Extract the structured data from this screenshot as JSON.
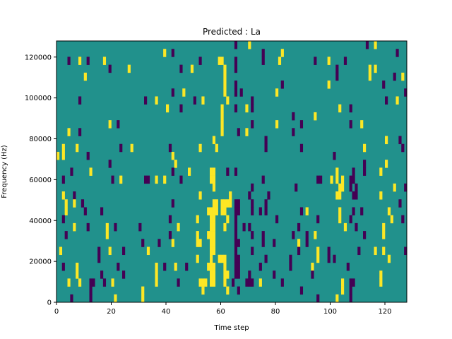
{
  "chart_data": {
    "type": "heatmap",
    "title": "Predicted : La",
    "xlabel": "Time step",
    "ylabel": "Frequency (Hz)",
    "xlim": [
      0,
      128
    ],
    "ylim": [
      0,
      127875
    ],
    "n_time_steps": 128,
    "n_freq_bins": 33,
    "xticks": [
      "0",
      "20",
      "40",
      "60",
      "80",
      "100",
      "120"
    ],
    "xtick_values": [
      0,
      20,
      40,
      60,
      80,
      100,
      120
    ],
    "yticks": [
      "0",
      "20000",
      "40000",
      "60000",
      "80000",
      "100000",
      "120000"
    ],
    "ytick_values": [
      0,
      20000,
      40000,
      60000,
      80000,
      100000,
      120000
    ],
    "value_colors": {
      "-1": "#440154",
      "0": "#21918c",
      "1": "#fde725"
    },
    "background_value": 0,
    "rows": [
      {
        "bin": 32,
        "yellow": [
          70,
          116
        ],
        "purple": [
          65,
          113
        ]
      },
      {
        "bin": 31,
        "yellow": [
          39,
          82
        ],
        "purple": [
          42,
          75,
          124
        ]
      },
      {
        "bin": 30,
        "yellow": [
          8,
          17,
          59,
          60,
          81,
          99
        ],
        "purple": [
          4,
          11,
          52,
          65,
          75,
          94,
          105
        ]
      },
      {
        "bin": 29,
        "yellow": [
          26,
          49,
          61,
          114,
          116
        ],
        "purple": [
          19,
          45,
          65,
          102
        ]
      },
      {
        "bin": 28,
        "yellow": [
          10,
          61,
          114,
          126
        ],
        "purple": [
          102,
          123
        ]
      },
      {
        "bin": 27,
        "yellow": [
          61,
          99
        ],
        "purple": [
          65,
          82,
          119
        ]
      },
      {
        "bin": 26,
        "yellow": [
          46,
          61,
          80
        ],
        "purple": [
          42,
          65,
          67,
          127
        ]
      },
      {
        "bin": 25,
        "yellow": [
          36,
          53,
          62,
          124
        ],
        "purple": [
          8,
          32,
          50,
          71,
          120
        ]
      },
      {
        "bin": 24,
        "yellow": [
          40,
          60,
          69,
          103
        ],
        "purple": [
          45,
          65,
          71,
          107
        ]
      },
      {
        "bin": 23,
        "yellow": [
          60,
          94
        ],
        "purple": [
          86
        ]
      },
      {
        "bin": 22,
        "yellow": [
          19,
          60,
          80,
          111
        ],
        "purple": [
          22,
          71,
          89,
          107
        ]
      },
      {
        "bin": 21,
        "yellow": [
          4,
          60,
          69
        ],
        "purple": [
          8,
          66,
          86
        ]
      },
      {
        "bin": 20,
        "yellow": [
          57,
          120
        ],
        "purple": [
          76,
          125
        ]
      },
      {
        "bin": 19,
        "yellow": [
          2,
          7,
          27,
          52,
          58,
          112
        ],
        "purple": [
          23,
          41,
          76,
          89,
          126
        ]
      },
      {
        "bin": 18,
        "yellow": [
          0,
          2,
          42
        ],
        "purple": [
          11,
          101
        ]
      },
      {
        "bin": 17,
        "yellow": [
          43,
          120
        ],
        "purple": [
          19,
          112
        ]
      },
      {
        "bin": 16,
        "yellow": [
          12,
          48,
          56,
          57,
          102,
          118
        ],
        "purple": [
          5,
          42,
          62,
          65,
          108,
          112
        ]
      },
      {
        "bin": 15,
        "yellow": [
          23,
          36,
          39,
          56,
          57,
          100,
          102,
          104
        ],
        "purple": [
          2,
          20,
          32,
          33,
          45,
          75,
          95,
          96,
          107,
          108
        ]
      },
      {
        "bin": 14,
        "yellow": [
          57,
          103,
          104,
          123
        ],
        "purple": [
          71,
          87,
          107,
          109,
          127
        ]
      },
      {
        "bin": 13,
        "yellow": [
          2,
          52,
          63,
          102,
          103,
          118
        ],
        "purple": [
          6,
          70,
          77,
          108,
          109
        ]
      },
      {
        "bin": 12,
        "yellow": [
          3,
          6,
          57,
          58,
          60,
          61,
          62,
          63
        ],
        "purple": [
          9,
          42,
          65,
          66,
          71,
          76,
          125
        ]
      },
      {
        "bin": 11,
        "yellow": [
          3,
          55,
          56,
          57,
          58,
          60,
          61,
          91,
          103,
          121
        ],
        "purple": [
          10,
          16,
          65,
          66,
          71,
          74,
          76,
          89,
          108,
          111
        ]
      },
      {
        "bin": 10,
        "yellow": [
          51,
          56,
          57,
          62,
          103,
          122
        ],
        "purple": [
          2,
          41,
          65,
          80,
          95,
          107,
          126
        ]
      },
      {
        "bin": 9,
        "yellow": [
          6,
          18,
          44,
          56,
          57,
          61,
          105,
          119
        ],
        "purple": [
          11,
          21,
          30,
          65,
          68,
          70,
          88,
          109
        ]
      },
      {
        "bin": 8,
        "yellow": [
          18,
          51,
          55,
          56,
          57,
          94,
          119
        ],
        "purple": [
          3,
          41,
          65,
          71,
          75,
          86,
          91,
          112
        ]
      },
      {
        "bin": 7,
        "yellow": [
          42,
          51,
          52,
          56,
          57,
          88
        ],
        "purple": [
          31,
          37,
          65,
          66,
          75,
          79,
          91
        ]
      },
      {
        "bin": 6,
        "yellow": [
          1,
          19,
          33,
          56,
          57,
          95,
          116,
          119
        ],
        "purple": [
          15,
          24,
          65,
          71,
          88,
          99,
          110,
          127
        ]
      },
      {
        "bin": 5,
        "yellow": [
          51,
          56,
          59,
          60,
          61,
          95,
          121
        ],
        "purple": [
          15,
          65,
          66,
          76,
          85,
          99,
          101
        ]
      },
      {
        "bin": 4,
        "yellow": [
          7,
          36,
          43,
          55,
          56,
          57,
          61,
          93
        ],
        "purple": [
          2,
          22,
          39,
          47,
          65,
          66,
          74,
          85,
          106
        ]
      },
      {
        "bin": 3,
        "yellow": [
          7,
          36,
          56,
          57,
          61,
          62,
          118
        ],
        "purple": [
          16,
          24,
          65,
          66,
          70,
          79,
          93
        ]
      },
      {
        "bin": 2,
        "yellow": [
          4,
          8,
          20,
          36,
          52,
          53,
          54,
          56,
          57,
          61,
          74,
          104,
          118
        ],
        "purple": [
          12,
          13,
          17,
          44,
          64,
          69,
          70,
          71,
          82,
          107,
          108
        ]
      },
      {
        "bin": 1,
        "yellow": [
          31,
          53,
          62,
          104
        ],
        "purple": [
          12,
          66,
          89,
          107
        ]
      },
      {
        "bin": 0,
        "yellow": [
          21,
          31,
          102
        ],
        "purple": [
          5,
          12,
          95,
          107
        ]
      }
    ]
  }
}
